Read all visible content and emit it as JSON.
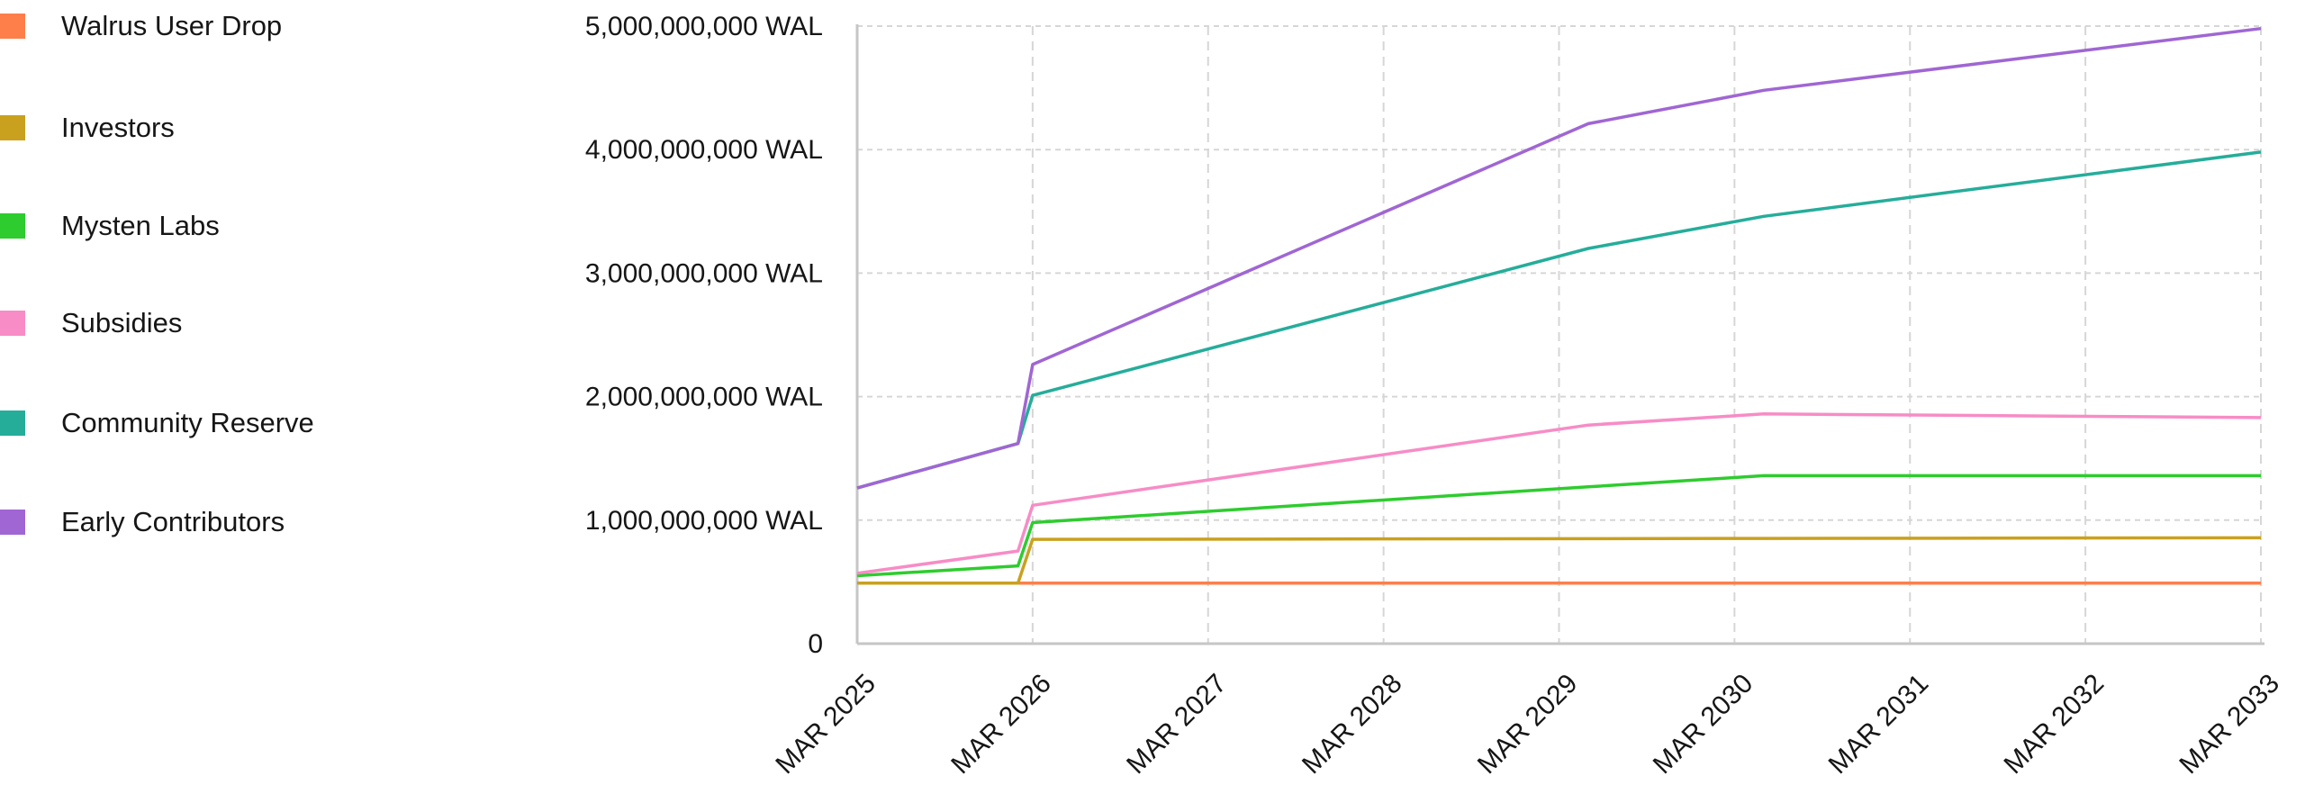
{
  "chart_data": {
    "type": "line",
    "title": "",
    "xlabel": "",
    "ylabel": "",
    "y_unit": "WAL",
    "ylim": [
      0,
      5000000000
    ],
    "y_ticks": [
      0,
      1000000000,
      2000000000,
      3000000000,
      4000000000,
      5000000000
    ],
    "y_tick_labels": [
      "0",
      "1,000,000,000 WAL",
      "2,000,000,000 WAL",
      "3,000,000,000 WAL",
      "4,000,000,000 WAL",
      "5,000,000,000 WAL"
    ],
    "xlim": [
      "2025-03",
      "2033-03"
    ],
    "x_ticks": [
      "2025-03",
      "2026-03",
      "2027-03",
      "2028-03",
      "2029-03",
      "2030-03",
      "2031-03",
      "2032-03",
      "2033-03"
    ],
    "x_tick_labels": [
      "MAR 2025",
      "MAR 2026",
      "MAR 2027",
      "MAR 2028",
      "MAR 2029",
      "MAR 2030",
      "MAR 2031",
      "MAR 2032",
      "MAR 2033"
    ],
    "grid": true,
    "legend_placement": "left",
    "x": [
      "2025-03",
      "2026-02",
      "2026-03",
      "2029-05",
      "2030-05",
      "2033-03"
    ],
    "series": [
      {
        "name": "Walrus User Drop",
        "color": "#ff7f4a",
        "values": [
          490000000,
          490000000,
          490000000,
          490000000,
          490000000,
          490000000
        ]
      },
      {
        "name": "Investors",
        "color": "#c9a11e",
        "values": [
          490000000,
          490000000,
          845000000,
          850000000,
          852000000,
          857000000
        ]
      },
      {
        "name": "Mysten Labs",
        "color": "#2ecc2e",
        "values": [
          550000000,
          630000000,
          980000000,
          1270000000,
          1360000000,
          1360000000
        ]
      },
      {
        "name": "Subsidies",
        "color": "#f78cc6",
        "values": [
          570000000,
          750000000,
          1120000000,
          1770000000,
          1860000000,
          1830000000
        ]
      },
      {
        "name": "Community Reserve",
        "color": "#25ad9a",
        "values": [
          1260000000,
          1620000000,
          2010000000,
          3200000000,
          3460000000,
          3980000000
        ]
      },
      {
        "name": "Early Contributors",
        "color": "#a066d3",
        "values": [
          1260000000,
          1620000000,
          2260000000,
          4210000000,
          4480000000,
          4980000000
        ]
      }
    ]
  }
}
